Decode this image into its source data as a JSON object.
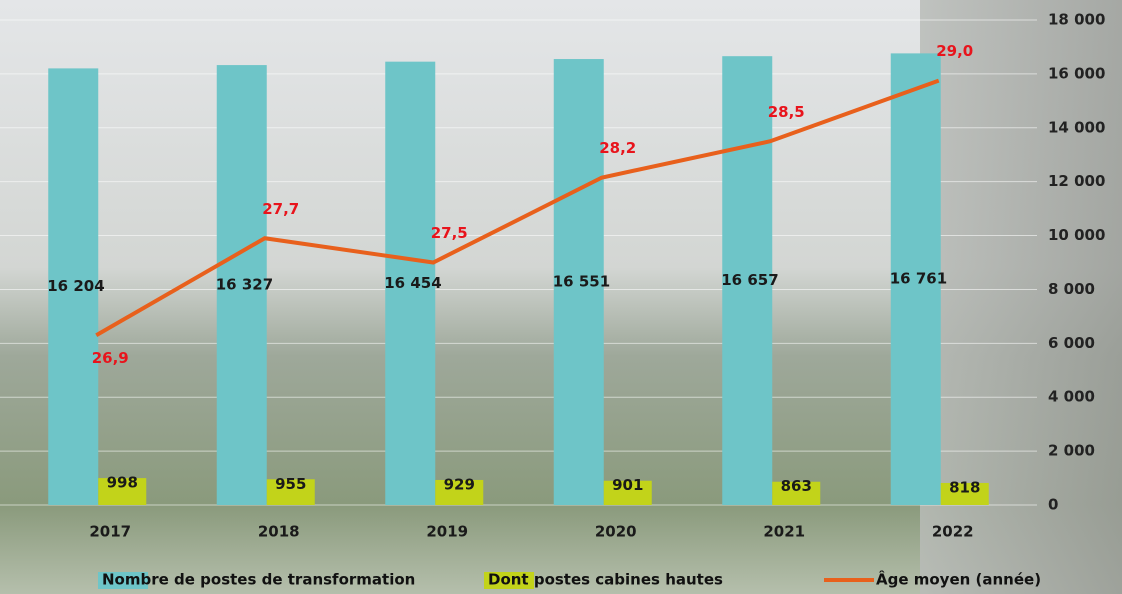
{
  "chart_data": {
    "type": "bar_line",
    "categories": [
      "2017",
      "2018",
      "2019",
      "2020",
      "2021",
      "2022"
    ],
    "series": [
      {
        "name": "Nombre de postes de transformation",
        "color": "#6ec5c8",
        "type": "bar",
        "values": [
          16204,
          16327,
          16454,
          16551,
          16657,
          16761
        ],
        "value_labels": [
          "16 204",
          "16 327",
          "16 454",
          "16 551",
          "16 657",
          "16 761"
        ]
      },
      {
        "name": "Dont postes cabines hautes",
        "color": "#c2d31a",
        "type": "bar",
        "values": [
          998,
          955,
          929,
          901,
          863,
          818
        ]
      },
      {
        "name": "Âge moyen (année)",
        "color": "#e8601c",
        "type": "line",
        "axis": "y2",
        "values": [
          26.9,
          27.7,
          27.5,
          28.2,
          28.5,
          29.0
        ],
        "value_labels": [
          "26,9",
          "27,7",
          "27,5",
          "28,2",
          "28,5",
          "29,0"
        ]
      }
    ],
    "ylim": [
      0,
      18000
    ],
    "yticks": [
      0,
      {
        "value": 2000,
        "label": "2 000"
      },
      {
        "value": 4000,
        "label": "4 000"
      },
      {
        "value": 6000,
        "label": "6 000"
      },
      {
        "value": 8000,
        "label": "8 000"
      },
      {
        "value": 10000,
        "label": "10 000"
      },
      {
        "value": 12000,
        "label": "12 000"
      },
      {
        "value": 14000,
        "label": "14 000"
      },
      {
        "value": 16000,
        "label": "16 000"
      },
      {
        "value": 18000,
        "label": "18 000"
      }
    ],
    "y2lim": [
      25.5,
      29.5
    ],
    "grid": true,
    "legend": "bottom"
  }
}
